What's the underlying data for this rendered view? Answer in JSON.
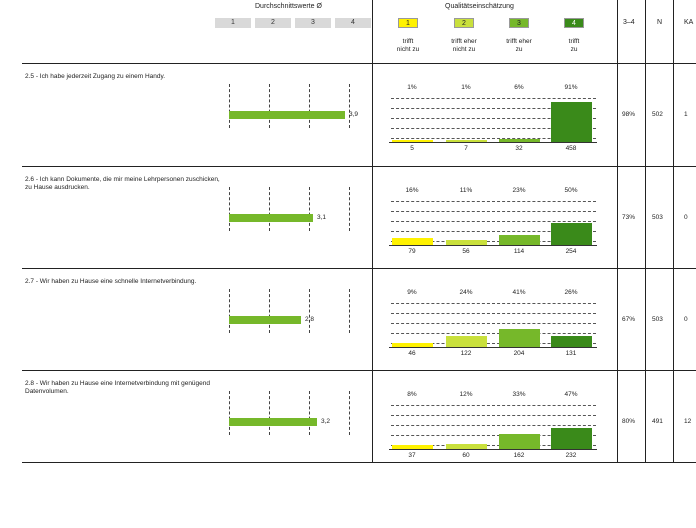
{
  "header": {
    "avg_title": "Durchschnittswerte Ø",
    "quality_title": "Qualitätseinschätzung",
    "scale": [
      "1",
      "2",
      "3",
      "4"
    ],
    "quality_boxes": [
      {
        "num": "1",
        "label": "trifft\nnicht zu",
        "color": "#fff200"
      },
      {
        "num": "2",
        "label": "trifft eher\nnicht zu",
        "color": "#c9e03c"
      },
      {
        "num": "3",
        "label": "trifft eher\nzu",
        "color": "#76b82a"
      },
      {
        "num": "4",
        "label": "trifft\nzu",
        "color": "#3a8a1a"
      }
    ],
    "col_34": "3–4",
    "col_n": "N",
    "col_ka": "KA"
  },
  "colors": {
    "c1": "#fff200",
    "c2": "#c9e03c",
    "c3": "#76b82a",
    "c4": "#3a8a1a",
    "avg": "#76b82a"
  },
  "questions": [
    {
      "text": "2.5 - Ich habe jederzeit Zugang zu einem Handy.",
      "avg": "3,9",
      "avg_value": 3.9,
      "pcts": [
        "1%",
        "1%",
        "6%",
        "91%"
      ],
      "pct_values": [
        1,
        1,
        6,
        91
      ],
      "counts": [
        "5",
        "7",
        "32",
        "458"
      ],
      "p34": "98%",
      "n": "502",
      "ka": "1"
    },
    {
      "text": "2.6 - Ich kann Dokumente, die mir meine Lehrpersonen zuschicken, zu Hause ausdrucken.",
      "avg": "3,1",
      "avg_value": 3.1,
      "pcts": [
        "16%",
        "11%",
        "23%",
        "50%"
      ],
      "pct_values": [
        16,
        11,
        23,
        50
      ],
      "counts": [
        "79",
        "56",
        "114",
        "254"
      ],
      "p34": "73%",
      "n": "503",
      "ka": "0"
    },
    {
      "text": "2.7 - Wir haben zu Hause eine schnelle Internetverbindung.",
      "avg": "2,8",
      "avg_value": 2.8,
      "pcts": [
        "9%",
        "24%",
        "41%",
        "26%"
      ],
      "pct_values": [
        9,
        24,
        41,
        26
      ],
      "counts": [
        "46",
        "122",
        "204",
        "131"
      ],
      "p34": "67%",
      "n": "503",
      "ka": "0"
    },
    {
      "text": "2.8 - Wir haben zu Hause eine Internetverbindung mit genügend Datenvolumen.",
      "avg": "3,2",
      "avg_value": 3.2,
      "pcts": [
        "8%",
        "12%",
        "33%",
        "47%"
      ],
      "pct_values": [
        8,
        12,
        33,
        47
      ],
      "counts": [
        "37",
        "60",
        "162",
        "232"
      ],
      "p34": "80%",
      "n": "491",
      "ka": "12"
    }
  ]
}
